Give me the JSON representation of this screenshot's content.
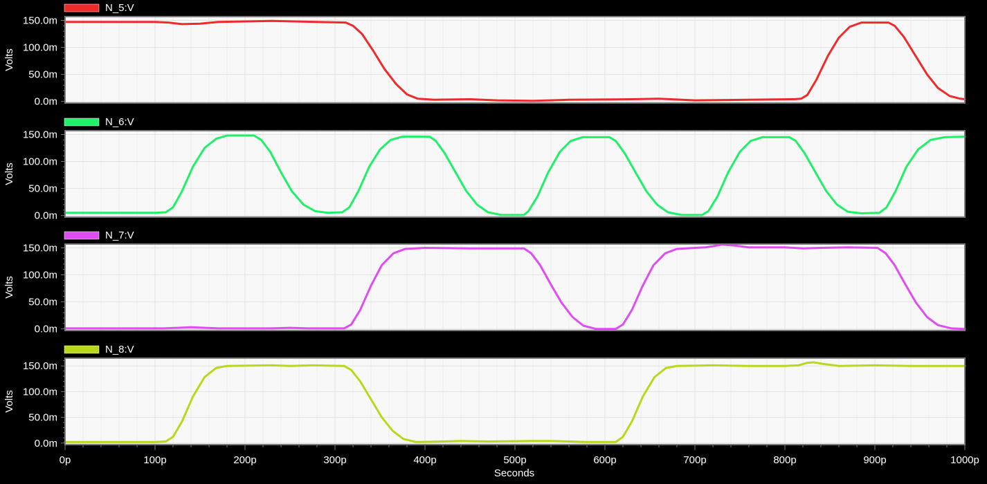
{
  "x_axis": {
    "label": "Seconds",
    "tick_labels": [
      "0p",
      "100p",
      "200p",
      "300p",
      "400p",
      "500p",
      "600p",
      "700p",
      "800p",
      "900p",
      "1000p"
    ]
  },
  "colors": {
    "background": "#000000",
    "plot_background": "#f8f8f8",
    "plot_border": "#7a7a7a",
    "grid": "#e2e2e2",
    "text": "#ffffff"
  },
  "chart_data": [
    {
      "type": "line",
      "series_name": "N_5:V",
      "color": "#ee2a2a",
      "ylabel": "Volts",
      "xlim": [
        0,
        1000
      ],
      "ylim": [
        -3,
        157
      ],
      "ytick_values": [
        0,
        50,
        100,
        150
      ],
      "ytick_labels": [
        "0.0m",
        "50.0m",
        "100.0m",
        "150.0m"
      ],
      "x_unit": "p",
      "y_unit": "m",
      "grid": true,
      "legend_position": "top-left",
      "points": [
        [
          0,
          147
        ],
        [
          50,
          147
        ],
        [
          100,
          147
        ],
        [
          115,
          146
        ],
        [
          130,
          143
        ],
        [
          150,
          144
        ],
        [
          170,
          147
        ],
        [
          230,
          149
        ],
        [
          280,
          147
        ],
        [
          312,
          146
        ],
        [
          320,
          140
        ],
        [
          330,
          125
        ],
        [
          342,
          95
        ],
        [
          355,
          60
        ],
        [
          368,
          32
        ],
        [
          380,
          13
        ],
        [
          392,
          5
        ],
        [
          410,
          3
        ],
        [
          450,
          4
        ],
        [
          480,
          2
        ],
        [
          520,
          1
        ],
        [
          560,
          3
        ],
        [
          630,
          4
        ],
        [
          660,
          5
        ],
        [
          700,
          2
        ],
        [
          760,
          3
        ],
        [
          810,
          4
        ],
        [
          818,
          5
        ],
        [
          825,
          12
        ],
        [
          835,
          40
        ],
        [
          848,
          85
        ],
        [
          860,
          118
        ],
        [
          872,
          138
        ],
        [
          885,
          146
        ],
        [
          915,
          146
        ],
        [
          922,
          140
        ],
        [
          932,
          120
        ],
        [
          945,
          85
        ],
        [
          958,
          50
        ],
        [
          970,
          25
        ],
        [
          983,
          10
        ],
        [
          995,
          5
        ],
        [
          1000,
          4
        ]
      ]
    },
    {
      "type": "line",
      "series_name": "N_6:V",
      "color": "#1ef068",
      "ylabel": "Volts",
      "xlim": [
        0,
        1000
      ],
      "ylim": [
        -3,
        157
      ],
      "ytick_values": [
        0,
        50,
        100,
        150
      ],
      "ytick_labels": [
        "0.0m",
        "50.0m",
        "100.0m",
        "150.0m"
      ],
      "x_unit": "p",
      "y_unit": "m",
      "grid": true,
      "legend_position": "top-left",
      "points": [
        [
          0,
          5
        ],
        [
          50,
          5
        ],
        [
          100,
          5
        ],
        [
          112,
          6
        ],
        [
          120,
          15
        ],
        [
          130,
          45
        ],
        [
          142,
          90
        ],
        [
          155,
          125
        ],
        [
          168,
          142
        ],
        [
          180,
          148
        ],
        [
          210,
          148
        ],
        [
          218,
          140
        ],
        [
          228,
          118
        ],
        [
          240,
          80
        ],
        [
          252,
          45
        ],
        [
          265,
          20
        ],
        [
          278,
          8
        ],
        [
          292,
          5
        ],
        [
          308,
          6
        ],
        [
          316,
          15
        ],
        [
          326,
          45
        ],
        [
          338,
          90
        ],
        [
          350,
          122
        ],
        [
          362,
          140
        ],
        [
          375,
          146
        ],
        [
          405,
          146
        ],
        [
          412,
          138
        ],
        [
          422,
          115
        ],
        [
          434,
          80
        ],
        [
          446,
          45
        ],
        [
          458,
          20
        ],
        [
          470,
          6
        ],
        [
          485,
          1
        ],
        [
          510,
          1
        ],
        [
          515,
          8
        ],
        [
          525,
          35
        ],
        [
          537,
          80
        ],
        [
          550,
          118
        ],
        [
          562,
          138
        ],
        [
          575,
          145
        ],
        [
          605,
          145
        ],
        [
          612,
          138
        ],
        [
          622,
          115
        ],
        [
          634,
          80
        ],
        [
          646,
          45
        ],
        [
          658,
          20
        ],
        [
          670,
          6
        ],
        [
          685,
          1
        ],
        [
          708,
          1
        ],
        [
          715,
          8
        ],
        [
          725,
          35
        ],
        [
          737,
          80
        ],
        [
          750,
          118
        ],
        [
          762,
          138
        ],
        [
          775,
          145
        ],
        [
          805,
          145
        ],
        [
          812,
          138
        ],
        [
          822,
          115
        ],
        [
          834,
          80
        ],
        [
          846,
          45
        ],
        [
          858,
          20
        ],
        [
          870,
          7
        ],
        [
          885,
          4
        ],
        [
          905,
          5
        ],
        [
          913,
          15
        ],
        [
          923,
          45
        ],
        [
          935,
          90
        ],
        [
          948,
          122
        ],
        [
          962,
          140
        ],
        [
          978,
          145
        ],
        [
          1000,
          146
        ]
      ]
    },
    {
      "type": "line",
      "series_name": "N_7:V",
      "color": "#de4cf2",
      "ylabel": "Volts",
      "xlim": [
        0,
        1000
      ],
      "ylim": [
        -3,
        157
      ],
      "ytick_values": [
        0,
        50,
        100,
        150
      ],
      "ytick_labels": [
        "0.0m",
        "50.0m",
        "100.0m",
        "150.0m"
      ],
      "x_unit": "p",
      "y_unit": "m",
      "grid": true,
      "legend_position": "top-left",
      "points": [
        [
          0,
          1
        ],
        [
          60,
          1
        ],
        [
          110,
          1
        ],
        [
          140,
          3
        ],
        [
          170,
          1
        ],
        [
          230,
          1
        ],
        [
          250,
          2
        ],
        [
          270,
          1
        ],
        [
          310,
          1
        ],
        [
          318,
          8
        ],
        [
          328,
          35
        ],
        [
          340,
          80
        ],
        [
          352,
          118
        ],
        [
          365,
          140
        ],
        [
          378,
          148
        ],
        [
          400,
          150
        ],
        [
          450,
          149
        ],
        [
          510,
          149
        ],
        [
          518,
          140
        ],
        [
          528,
          118
        ],
        [
          540,
          82
        ],
        [
          552,
          48
        ],
        [
          564,
          22
        ],
        [
          576,
          6
        ],
        [
          590,
          0
        ],
        [
          612,
          0
        ],
        [
          620,
          8
        ],
        [
          630,
          35
        ],
        [
          642,
          80
        ],
        [
          654,
          118
        ],
        [
          667,
          140
        ],
        [
          680,
          148
        ],
        [
          700,
          150
        ],
        [
          712,
          151
        ],
        [
          720,
          153
        ],
        [
          730,
          156
        ],
        [
          745,
          154
        ],
        [
          760,
          151
        ],
        [
          800,
          151
        ],
        [
          820,
          149
        ],
        [
          840,
          150
        ],
        [
          870,
          151
        ],
        [
          903,
          150
        ],
        [
          912,
          140
        ],
        [
          922,
          118
        ],
        [
          934,
          82
        ],
        [
          946,
          48
        ],
        [
          958,
          22
        ],
        [
          970,
          7
        ],
        [
          985,
          1
        ],
        [
          1000,
          0
        ]
      ]
    },
    {
      "type": "line",
      "series_name": "N_8:V",
      "color": "#b8d81a",
      "ylabel": "Volts",
      "xlim": [
        0,
        1000
      ],
      "ylim": [
        -3,
        165
      ],
      "ytick_values": [
        0,
        50,
        100,
        150
      ],
      "ytick_labels": [
        "0.0m",
        "50.0m",
        "100.0m",
        "150.0m"
      ],
      "x_unit": "p",
      "y_unit": "m",
      "grid": true,
      "legend_position": "top-left",
      "points": [
        [
          0,
          2
        ],
        [
          50,
          2
        ],
        [
          100,
          2
        ],
        [
          112,
          3
        ],
        [
          120,
          12
        ],
        [
          130,
          42
        ],
        [
          142,
          90
        ],
        [
          155,
          128
        ],
        [
          168,
          146
        ],
        [
          180,
          150
        ],
        [
          230,
          151
        ],
        [
          250,
          150
        ],
        [
          275,
          151
        ],
        [
          310,
          150
        ],
        [
          318,
          142
        ],
        [
          328,
          120
        ],
        [
          340,
          85
        ],
        [
          352,
          50
        ],
        [
          364,
          24
        ],
        [
          376,
          8
        ],
        [
          390,
          2
        ],
        [
          420,
          3
        ],
        [
          440,
          4
        ],
        [
          470,
          3
        ],
        [
          520,
          4
        ],
        [
          540,
          4
        ],
        [
          560,
          3
        ],
        [
          580,
          2
        ],
        [
          612,
          2
        ],
        [
          620,
          12
        ],
        [
          630,
          42
        ],
        [
          642,
          90
        ],
        [
          655,
          128
        ],
        [
          668,
          146
        ],
        [
          680,
          150
        ],
        [
          720,
          151
        ],
        [
          760,
          150
        ],
        [
          800,
          150
        ],
        [
          815,
          151
        ],
        [
          825,
          156
        ],
        [
          832,
          157
        ],
        [
          842,
          154
        ],
        [
          860,
          150
        ],
        [
          900,
          151
        ],
        [
          940,
          150
        ],
        [
          1000,
          150
        ]
      ]
    }
  ]
}
